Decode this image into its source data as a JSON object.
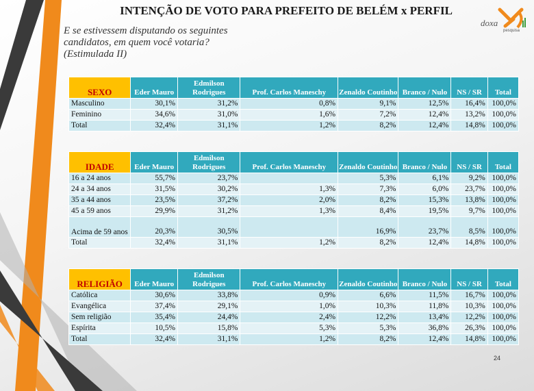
{
  "title": "INTENÇÃO DE VOTO PARA PREFEITO DE BELÉM x PERFIL",
  "question": "E se estivessem disputando os seguintes candidatos, em quem você votaria? (Estimulada II)",
  "logo": {
    "name": "doxa",
    "subtitle": "pesquisa"
  },
  "page_number": "24",
  "columns": [
    "Eder Mauro",
    "Edmilson Rodrigues",
    "Prof. Carlos Maneschy",
    "Zenaldo Coutinho",
    "Branco / Nulo",
    "NS / SR",
    "Total"
  ],
  "colors": {
    "header": "#31a9bd",
    "corner": "#ffc000",
    "corner_text": "#c00000",
    "row_a": "#cde9f0",
    "row_b": "#e4f2f6"
  },
  "tables": [
    {
      "heading": "SEXO",
      "rows": [
        {
          "label": "Masculino",
          "values": [
            "30,1%",
            "31,2%",
            "0,8%",
            "9,1%",
            "12,5%",
            "16,4%",
            "100,0%"
          ]
        },
        {
          "label": "Feminino",
          "values": [
            "34,6%",
            "31,0%",
            "1,6%",
            "7,2%",
            "12,4%",
            "13,2%",
            "100,0%"
          ]
        },
        {
          "label": "Total",
          "values": [
            "32,4%",
            "31,1%",
            "1,2%",
            "8,2%",
            "12,4%",
            "14,8%",
            "100,0%"
          ]
        }
      ]
    },
    {
      "heading": "IDADE",
      "rows": [
        {
          "label": "16 a 24 anos",
          "values": [
            "55,7%",
            "23,7%",
            "",
            "5,3%",
            "6,1%",
            "9,2%",
            "100,0%"
          ]
        },
        {
          "label": "24 a 34 anos",
          "values": [
            "31,5%",
            "30,2%",
            "1,3%",
            "7,3%",
            "6,0%",
            "23,7%",
            "100,0%"
          ]
        },
        {
          "label": "35 a 44 anos",
          "values": [
            "23,5%",
            "37,2%",
            "2,0%",
            "8,2%",
            "15,3%",
            "13,8%",
            "100,0%"
          ]
        },
        {
          "label": "45 a 59 anos",
          "values": [
            "29,9%",
            "31,2%",
            "1,3%",
            "8,4%",
            "19,5%",
            "9,7%",
            "100,0%"
          ]
        },
        {
          "label": "Acima de 59 anos",
          "values": [
            "20,3%",
            "30,5%",
            "",
            "16,9%",
            "23,7%",
            "8,5%",
            "100,0%"
          ]
        },
        {
          "label": "Total",
          "values": [
            "32,4%",
            "31,1%",
            "1,2%",
            "8,2%",
            "12,4%",
            "14,8%",
            "100,0%"
          ]
        }
      ]
    },
    {
      "heading": "RELIGIÃO",
      "rows": [
        {
          "label": "Católica",
          "values": [
            "30,6%",
            "33,8%",
            "0,9%",
            "6,6%",
            "11,5%",
            "16,7%",
            "100,0%"
          ]
        },
        {
          "label": "Evangélica",
          "values": [
            "37,4%",
            "29,1%",
            "1,0%",
            "10,3%",
            "11,8%",
            "10,3%",
            "100,0%"
          ]
        },
        {
          "label": "Sem religião",
          "values": [
            "35,4%",
            "24,4%",
            "2,4%",
            "12,2%",
            "13,4%",
            "12,2%",
            "100,0%"
          ]
        },
        {
          "label": "Espírita",
          "values": [
            "10,5%",
            "15,8%",
            "5,3%",
            "5,3%",
            "36,8%",
            "26,3%",
            "100,0%"
          ]
        },
        {
          "label": "Total",
          "values": [
            "32,4%",
            "31,1%",
            "1,2%",
            "8,2%",
            "12,4%",
            "14,8%",
            "100,0%"
          ]
        }
      ]
    }
  ]
}
